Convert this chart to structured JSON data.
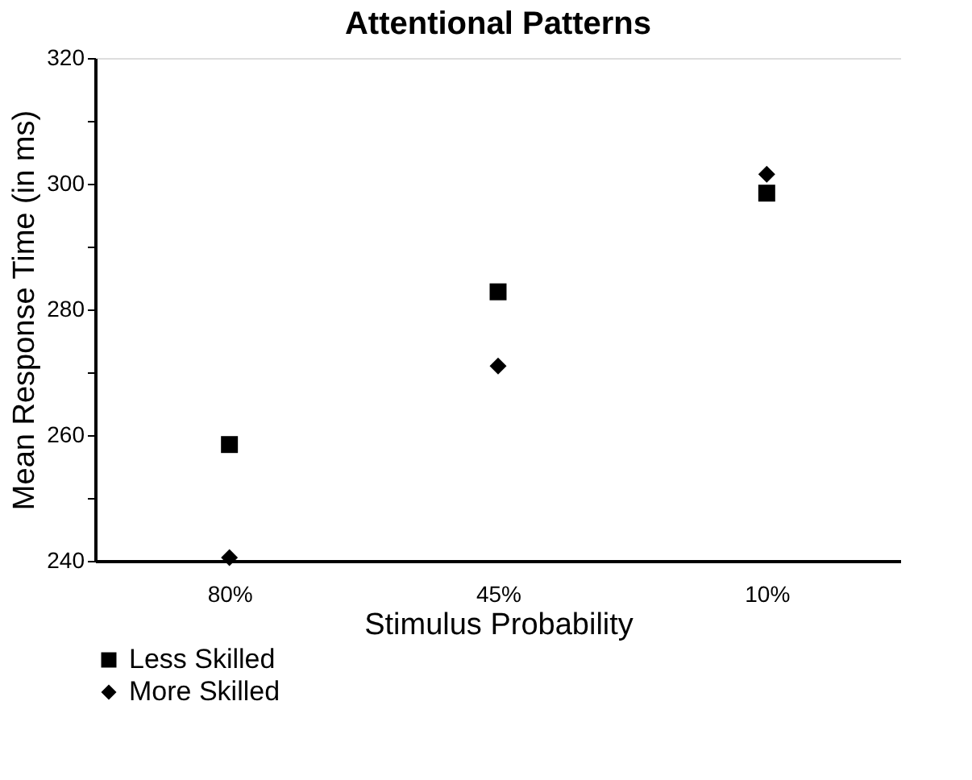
{
  "chart_data": {
    "type": "scatter",
    "title": "Attentional   Patterns",
    "xlabel": "Stimulus   Probability",
    "ylabel": "Mean Response Time (in ms)",
    "categories": [
      "80%",
      "45%",
      "10%"
    ],
    "ylim": [
      240,
      320
    ],
    "yticks": [
      240,
      {
        "value": 250,
        "label": null
      },
      260,
      {
        "value": 270,
        "label": null
      },
      280,
      {
        "value": 290,
        "label": null
      },
      300,
      {
        "value": 310,
        "label": null
      },
      320
    ],
    "grid": false,
    "legend": "bottom left",
    "series": [
      {
        "name": "Less Skilled",
        "color": "#000000",
        "marker": "square",
        "values": [
          258.5,
          282.8,
          298.5
        ]
      },
      {
        "name": "More Skilled",
        "color": "#000000",
        "marker": "diamond",
        "values": [
          240.5,
          271,
          301.5
        ]
      }
    ]
  }
}
